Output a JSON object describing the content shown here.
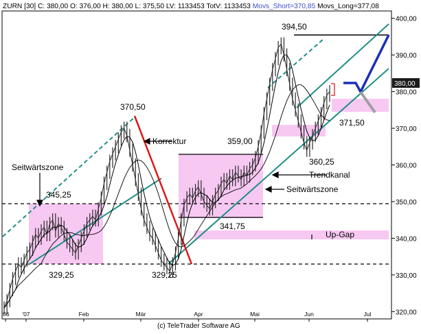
{
  "header": {
    "parts": [
      {
        "text": "ZURN [30] C: 380,00 O: 376,00 H: 380,00 L: 375,50 LV: 1133453 TotV: 1133453 ",
        "color": "#000000"
      },
      {
        "text": "Movs_Short=370,85",
        "color": "#3b50c8"
      },
      {
        "text": " Movs_Long=377,08",
        "color": "#000000"
      }
    ]
  },
  "footer": "(c) TeleTrader Software AG",
  "colors": {
    "price": "#2a2a2a",
    "pink_zone": "#f7c8f2",
    "channel_teal": "#1f8f86",
    "korrektur_red": "#e01818",
    "projection_blue": "#1a2fb8",
    "projection_gray": "#a0a0a0",
    "current_price_box": "#1a1a1a"
  },
  "chart_data": {
    "type": "line",
    "title": "",
    "ylim": [
      318,
      402
    ],
    "x_ticks": [
      "'06",
      "'07",
      "Feb",
      "Mär",
      "Apr",
      "Mai",
      "Jun",
      "Jul"
    ],
    "y_ticks": [
      320,
      330,
      340,
      350,
      360,
      370,
      380,
      390,
      400
    ],
    "y_tick_labels": [
      "320,00",
      "330,00",
      "340,00",
      "350,00",
      "360,00",
      "370,00",
      "380,00",
      "390,00",
      "400,00"
    ],
    "current_price_label": "380,00",
    "current_price": 380,
    "dashed_levels": [
      345.3,
      329.0
    ],
    "price_series": [
      321,
      323,
      326,
      329,
      331,
      333,
      332,
      334,
      336,
      337,
      339,
      341,
      340,
      342,
      343,
      341,
      344,
      345,
      342,
      344,
      343,
      341,
      339,
      338,
      337,
      336,
      338,
      340,
      342,
      344,
      345,
      346,
      345,
      348,
      351,
      355,
      358,
      361,
      363,
      365,
      367,
      369,
      370,
      368,
      364,
      360,
      356,
      352,
      348,
      345,
      343,
      341,
      340,
      338,
      336,
      334,
      333,
      332,
      331,
      333,
      336,
      340,
      345,
      349,
      351,
      352,
      351,
      353,
      354,
      352,
      350,
      349,
      348,
      350,
      352,
      353,
      355,
      356,
      355,
      357,
      356,
      358,
      357,
      356,
      358,
      357,
      359,
      360,
      362,
      365,
      369,
      374,
      378,
      382,
      386,
      389,
      392,
      393,
      390,
      386,
      382,
      378,
      375,
      372,
      369,
      366,
      364,
      366,
      368,
      370,
      372,
      374,
      377,
      379,
      380
    ],
    "annotations": [
      {
        "text": "394,50",
        "value": 394.5
      },
      {
        "text": "370,50",
        "value": 370.5
      },
      {
        "text": "359,00",
        "value": 359.0
      },
      {
        "text": "360,25",
        "value": 360.25
      },
      {
        "text": "371,50",
        "value": 371.5
      },
      {
        "text": "345,25",
        "value": 345.25
      },
      {
        "text": "341,75",
        "value": 341.75
      },
      {
        "text": "329,25",
        "value": 329.25
      },
      {
        "text": "329,25",
        "value": 329.25
      }
    ],
    "labels": {
      "korrektur": "Korrektur",
      "seitwaertszone_1": "Seitwärtszone",
      "seitwaertszone_2": "Seitwärtszone",
      "trendkanal": "Trendkanal",
      "up_gap": "Up-Gap"
    },
    "grid": false,
    "legend": "none"
  }
}
